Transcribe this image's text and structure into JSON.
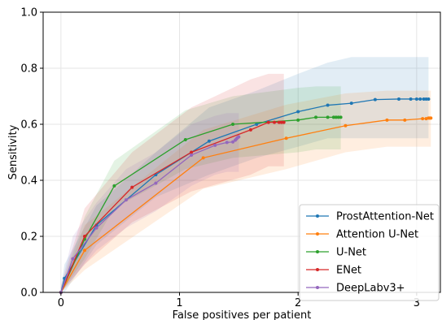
{
  "chart_data": {
    "type": "line",
    "title": "",
    "xlabel": "False positives per patient",
    "ylabel": "Sensitivity",
    "xlim": [
      -0.15,
      3.2
    ],
    "ylim": [
      0.0,
      1.0
    ],
    "xticks": [
      0,
      1,
      2,
      3
    ],
    "yticks": [
      0.0,
      0.2,
      0.4,
      0.6,
      0.8,
      1.0
    ],
    "xtick_labels": [
      "0",
      "1",
      "2",
      "3"
    ],
    "ytick_labels": [
      "0.0",
      "0.2",
      "0.4",
      "0.6",
      "0.8",
      "1.0"
    ],
    "grid": true,
    "legend_position": "bottom-right",
    "series": [
      {
        "name": "ProstAttention-Net",
        "color": "#1f77b4",
        "x": [
          0.0,
          0.03,
          0.3,
          0.8,
          1.25,
          1.65,
          2.0,
          2.25,
          2.45,
          2.65,
          2.85,
          2.95,
          3.0,
          3.03,
          3.06,
          3.08,
          3.1
        ],
        "y": [
          0.0,
          0.05,
          0.24,
          0.42,
          0.54,
          0.6,
          0.645,
          0.668,
          0.675,
          0.688,
          0.69,
          0.69,
          0.69,
          0.69,
          0.69,
          0.69,
          0.69
        ],
        "upper": [
          0.02,
          0.1,
          0.31,
          0.5,
          0.66,
          0.72,
          0.78,
          0.82,
          0.84,
          0.84,
          0.84,
          0.84,
          0.84,
          0.84,
          0.84,
          0.84,
          0.84
        ],
        "lower": [
          0.0,
          0.0,
          0.17,
          0.34,
          0.42,
          0.48,
          0.52,
          0.55,
          0.55,
          0.55,
          0.55,
          0.55,
          0.55,
          0.55,
          0.55,
          0.55,
          0.55
        ]
      },
      {
        "name": "Attention U-Net",
        "color": "#ff7f0e",
        "x": [
          0.0,
          0.2,
          1.2,
          1.9,
          2.4,
          2.75,
          2.9,
          3.05,
          3.08,
          3.1,
          3.11,
          3.12
        ],
        "y": [
          0.0,
          0.15,
          0.48,
          0.55,
          0.595,
          0.615,
          0.615,
          0.62,
          0.62,
          0.622,
          0.622,
          0.622
        ],
        "upper": [
          0.01,
          0.24,
          0.58,
          0.67,
          0.71,
          0.72,
          0.72,
          0.72,
          0.72,
          0.72,
          0.72,
          0.72
        ],
        "lower": [
          0.0,
          0.08,
          0.37,
          0.44,
          0.5,
          0.52,
          0.52,
          0.52,
          0.52,
          0.52,
          0.52,
          0.52
        ]
      },
      {
        "name": "U-Net",
        "color": "#2ca02c",
        "x": [
          0.0,
          0.2,
          0.45,
          1.05,
          1.45,
          2.0,
          2.15,
          2.25,
          2.3,
          2.32,
          2.34,
          2.36
        ],
        "y": [
          0.0,
          0.19,
          0.38,
          0.545,
          0.6,
          0.615,
          0.625,
          0.625,
          0.625,
          0.625,
          0.625,
          0.625
        ],
        "upper": [
          0.01,
          0.27,
          0.47,
          0.65,
          0.7,
          0.73,
          0.735,
          0.735,
          0.735,
          0.735,
          0.735,
          0.735
        ],
        "lower": [
          0.0,
          0.12,
          0.3,
          0.44,
          0.48,
          0.5,
          0.51,
          0.51,
          0.51,
          0.51,
          0.51,
          0.51
        ]
      },
      {
        "name": "ENet",
        "color": "#d62728",
        "x": [
          0.0,
          0.2,
          0.6,
          1.1,
          1.6,
          1.75,
          1.8,
          1.84,
          1.86,
          1.88
        ],
        "y": [
          0.0,
          0.2,
          0.375,
          0.5,
          0.58,
          0.607,
          0.607,
          0.607,
          0.607,
          0.607
        ],
        "upper": [
          0.02,
          0.3,
          0.5,
          0.66,
          0.76,
          0.78,
          0.78,
          0.78,
          0.78,
          0.78
        ],
        "lower": [
          0.0,
          0.1,
          0.25,
          0.36,
          0.42,
          0.45,
          0.45,
          0.45,
          0.45,
          0.45
        ]
      },
      {
        "name": "DeepLabv3+",
        "color": "#9467bd",
        "x": [
          0.0,
          0.1,
          0.3,
          0.55,
          0.8,
          1.1,
          1.3,
          1.4,
          1.45,
          1.47,
          1.48,
          1.49,
          1.5
        ],
        "y": [
          0.0,
          0.12,
          0.23,
          0.33,
          0.39,
          0.49,
          0.525,
          0.535,
          0.537,
          0.543,
          0.548,
          0.552,
          0.555
        ],
        "upper": [
          0.02,
          0.2,
          0.32,
          0.44,
          0.5,
          0.6,
          0.63,
          0.64,
          0.64,
          0.64,
          0.64,
          0.64,
          0.64
        ],
        "lower": [
          0.0,
          0.05,
          0.15,
          0.23,
          0.29,
          0.38,
          0.42,
          0.43,
          0.43,
          0.43,
          0.43,
          0.43,
          0.43
        ]
      }
    ]
  }
}
